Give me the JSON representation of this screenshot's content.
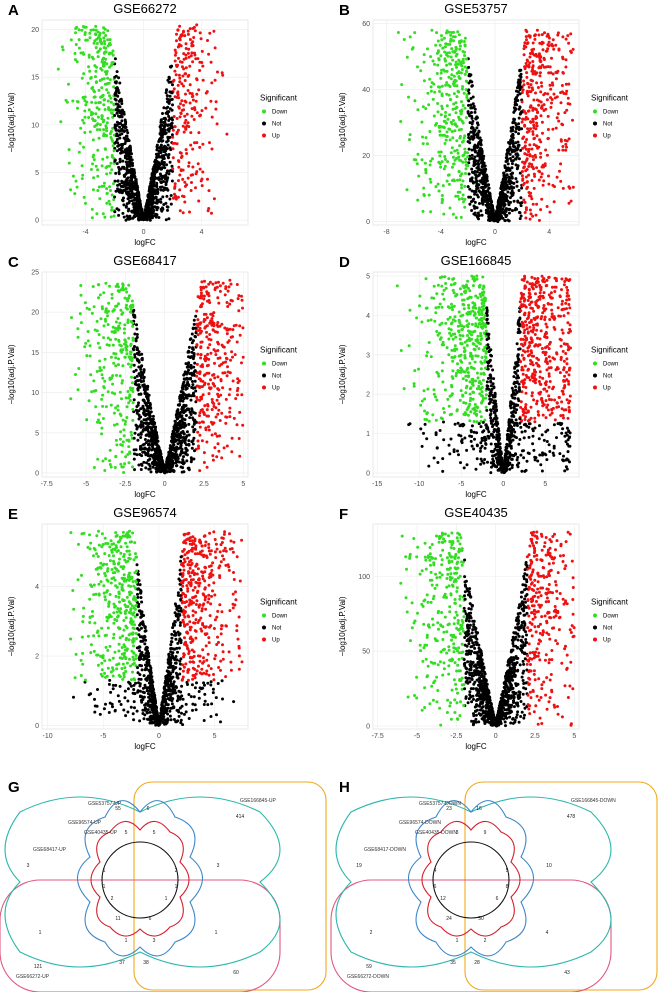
{
  "colors": {
    "down": "#33dd22",
    "not": "#000000",
    "up": "#ee1111"
  },
  "chart_data": [
    {
      "type": "scatter",
      "letter": "A",
      "title": "GSE66272",
      "xlabel": "logFC",
      "ylabel": "−log10(adj.P.Val)",
      "xlim": [
        -7,
        7.2
      ],
      "ylim": [
        -0.5,
        21
      ],
      "xticks": [
        -4,
        0,
        4
      ],
      "yticks": [
        0,
        5,
        10,
        15,
        20
      ],
      "legend": {
        "title": "Significant",
        "items": [
          "Down",
          "Not",
          "Up"
        ]
      },
      "fc_cut": 2,
      "max_y": 20.5,
      "down_max_x": -6.5,
      "up_max_x": 6.8,
      "vmin": 0.0
    },
    {
      "type": "scatter",
      "letter": "B",
      "title": "GSE53757",
      "xlabel": "logFC",
      "ylabel": "−log10(adj.P.Val)",
      "xlim": [
        -9,
        6.2
      ],
      "ylim": [
        -1,
        61
      ],
      "xticks": [
        -8,
        -4,
        0,
        4
      ],
      "yticks": [
        0,
        20,
        40,
        60
      ],
      "legend": {
        "title": "Significant",
        "items": [
          "Down",
          "Not",
          "Up"
        ]
      },
      "fc_cut": 2,
      "max_y": 58,
      "down_max_x": -8.2,
      "up_max_x": 5.8,
      "vmin": 0.0
    },
    {
      "type": "scatter",
      "letter": "C",
      "title": "GSE68417",
      "xlabel": "logFC",
      "ylabel": "−log10(adj.P.Val)",
      "xlim": [
        -7.8,
        5.3
      ],
      "ylim": [
        -0.5,
        25
      ],
      "xticks": [
        -7.5,
        -5.0,
        -2.5,
        0.0,
        2.5,
        5.0
      ],
      "yticks": [
        0,
        5,
        10,
        15,
        20,
        25
      ],
      "legend": {
        "title": "Significant",
        "items": [
          "Down",
          "Not",
          "Up"
        ]
      },
      "fc_cut": 2,
      "max_y": 24,
      "down_max_x": -7.2,
      "up_max_x": 5.0,
      "vmin": 0.0
    },
    {
      "type": "scatter",
      "letter": "D",
      "title": "GSE166845",
      "xlabel": "logFC",
      "ylabel": "−log10(adj.P.Val)",
      "xlim": [
        -15.5,
        9
      ],
      "ylim": [
        -0.1,
        5.1
      ],
      "xticks": [
        -15,
        -10,
        -5,
        0,
        5
      ],
      "yticks": [
        0,
        1,
        2,
        3,
        4,
        5
      ],
      "legend": {
        "title": "Significant",
        "items": [
          "Down",
          "Not",
          "Up"
        ]
      },
      "fc_cut": 2,
      "max_y": 5.0,
      "down_max_x": -14.5,
      "up_max_x": 8,
      "vmin": 1.3
    },
    {
      "type": "scatter",
      "letter": "E",
      "title": "GSE96574",
      "xlabel": "logFC",
      "ylabel": "−log10(adj.P.Val)",
      "xlim": [
        -10.5,
        8
      ],
      "ylim": [
        -0.1,
        5.8
      ],
      "xticks": [
        -10,
        -5,
        0,
        5
      ],
      "yticks": [
        0,
        2,
        4
      ],
      "legend": {
        "title": "Significant",
        "items": [
          "Down",
          "Not",
          "Up"
        ]
      },
      "fc_cut": 2,
      "max_y": 5.6,
      "down_max_x": -10,
      "up_max_x": 7.5,
      "vmin": 1.3
    },
    {
      "type": "scatter",
      "letter": "F",
      "title": "GSE40435",
      "xlabel": "logFC",
      "ylabel": "−log10(adj.P.Val)",
      "xlim": [
        -7.8,
        5.3
      ],
      "ylim": [
        -2,
        135
      ],
      "xticks": [
        -7.5,
        -5.0,
        -2.5,
        0.0,
        2.5,
        5.0
      ],
      "yticks": [
        0,
        50,
        100
      ],
      "legend": {
        "title": "Significant",
        "items": [
          "Down",
          "Not",
          "Up"
        ]
      },
      "fc_cut": 2,
      "max_y": 130,
      "down_max_x": -7.2,
      "up_max_x": 5.0,
      "vmin": 0.0
    }
  ],
  "venns": [
    {
      "letter": "G",
      "set_labels": [
        "GSE53757-UP",
        "GSE96574-UP",
        "GSE40435-UP",
        "GSE68417-UP",
        "GSE166845-UP",
        "GSE66272-UP"
      ],
      "counts": [
        "55",
        "6",
        "414",
        "3",
        "3",
        "1",
        "1",
        "2",
        "1",
        "11",
        "6",
        "121",
        "60",
        "37",
        "38",
        "1",
        "2",
        "1",
        "1",
        "5",
        "5",
        "1",
        "3"
      ]
    },
    {
      "letter": "H",
      "set_labels": [
        "GSE53757-DOWN",
        "GSE96574-DOWN",
        "GSE40435-DOWN",
        "GSE68417-DOWN",
        "GSE166845-DOWN",
        "GSE66272-DOWN"
      ],
      "counts": [
        "23",
        "16",
        "478",
        "19",
        "10",
        "2",
        "4",
        "12",
        "6",
        "24",
        "50",
        "59",
        "43",
        "35",
        "28",
        "4",
        "5",
        "6",
        "8",
        "3",
        "9",
        "1",
        "2"
      ]
    }
  ]
}
